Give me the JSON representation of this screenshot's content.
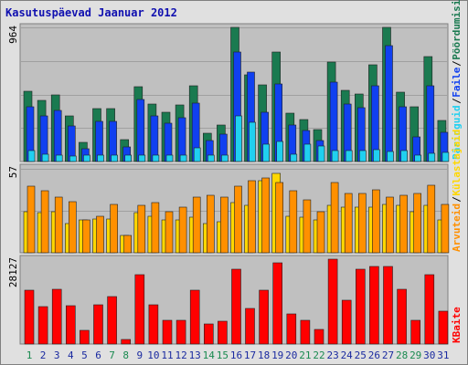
{
  "chart_data": [
    {
      "type": "bar",
      "title": "Kasutuspäevad Jaanuar 2012",
      "panel": "hits",
      "categories": [
        "1",
        "2",
        "3",
        "4",
        "5",
        "6",
        "7",
        "8",
        "9",
        "10",
        "11",
        "12",
        "13",
        "14",
        "15",
        "16",
        "17",
        "18",
        "19",
        "20",
        "21",
        "22",
        "23",
        "24",
        "25",
        "26",
        "27",
        "28",
        "29",
        "30",
        "31"
      ],
      "ymax_label": "964",
      "ylim": [
        0,
        964
      ],
      "right_labels": [
        "Päringuid",
        "Faile",
        "Pöördumisi"
      ],
      "series": [
        {
          "name": "Pöördumisi",
          "color": "#1a7a50",
          "values": [
            505,
            440,
            476,
            326,
            138,
            380,
            380,
            160,
            540,
            412,
            357,
            407,
            546,
            202,
            264,
            964,
            620,
            548,
            790,
            345,
            302,
            231,
            713,
            514,
            483,
            694,
            964,
            499,
            395,
            753,
            294
          ]
        },
        {
          "name": "Faile",
          "color": "#1040f0",
          "values": [
            395,
            326,
            365,
            255,
            95,
            286,
            286,
            107,
            443,
            330,
            276,
            315,
            417,
            150,
            195,
            790,
            640,
            357,
            555,
            264,
            225,
            153,
            568,
            412,
            385,
            545,
            835,
            395,
            178,
            545,
            209
          ]
        },
        {
          "name": "Päringuid",
          "color": "#20d0f0",
          "values": [
            76,
            50,
            45,
            40,
            45,
            46,
            45,
            44,
            47,
            47,
            45,
            45,
            100,
            45,
            45,
            330,
            285,
            125,
            145,
            55,
            125,
            110,
            80,
            80,
            78,
            85,
            75,
            80,
            45,
            60,
            65
          ]
        }
      ]
    },
    {
      "type": "bar",
      "panel": "visits",
      "categories": [
        "1",
        "2",
        "3",
        "4",
        "5",
        "6",
        "7",
        "8",
        "9",
        "10",
        "11",
        "12",
        "13",
        "14",
        "15",
        "16",
        "17",
        "18",
        "19",
        "20",
        "21",
        "22",
        "23",
        "24",
        "25",
        "26",
        "27",
        "28",
        "29",
        "30",
        "31"
      ],
      "ymax_label": "57",
      "ylim": [
        0,
        57
      ],
      "right_labels": [
        "Arvuteid",
        "Külastajaid"
      ],
      "series": [
        {
          "name": "Külastajaid",
          "color": "#ffd700",
          "values": [
            28,
            27,
            28,
            20,
            22,
            23,
            23,
            12,
            27,
            25,
            22,
            22,
            24,
            20,
            21,
            34,
            32,
            49,
            54,
            25,
            24,
            22,
            32,
            31,
            31,
            31,
            33,
            32,
            28,
            32,
            22
          ]
        },
        {
          "name": "Arvuteid",
          "color": "#ff9000",
          "values": [
            45,
            42,
            38,
            35,
            22,
            25,
            33,
            12,
            32,
            34,
            28,
            31,
            38,
            39,
            38,
            45,
            49,
            51,
            48,
            42,
            36,
            28,
            48,
            40,
            40,
            43,
            38,
            39,
            40,
            46,
            33
          ]
        }
      ]
    },
    {
      "type": "bar",
      "panel": "bandwidth",
      "categories": [
        "1",
        "2",
        "3",
        "4",
        "5",
        "6",
        "7",
        "8",
        "9",
        "10",
        "11",
        "12",
        "13",
        "14",
        "15",
        "16",
        "17",
        "18",
        "19",
        "20",
        "21",
        "22",
        "23",
        "24",
        "25",
        "26",
        "27",
        "28",
        "29",
        "30",
        "31"
      ],
      "ymax_label": "28127",
      "ylim": [
        0,
        28127
      ],
      "right_labels": [
        "KBaite"
      ],
      "series": [
        {
          "name": "KBaite",
          "color": "#ff0000",
          "values": [
            17700,
            12500,
            18000,
            12600,
            4500,
            13000,
            15800,
            1500,
            23000,
            13000,
            7800,
            7800,
            17700,
            6700,
            7500,
            24800,
            11700,
            17700,
            26800,
            10100,
            7800,
            4800,
            28127,
            14600,
            24800,
            25700,
            25700,
            18000,
            7800,
            23000,
            11000
          ]
        }
      ]
    }
  ],
  "weekend_days": [
    1,
    7,
    8,
    14,
    15,
    21,
    22,
    28,
    29
  ],
  "colors": {
    "panel_bg": "#c0c0c0",
    "frame_bg": "#e0e0e0",
    "grid": "#a0a0a0",
    "weekday_label": "#1a2aa0",
    "weekend_label": "#1a8a50"
  }
}
